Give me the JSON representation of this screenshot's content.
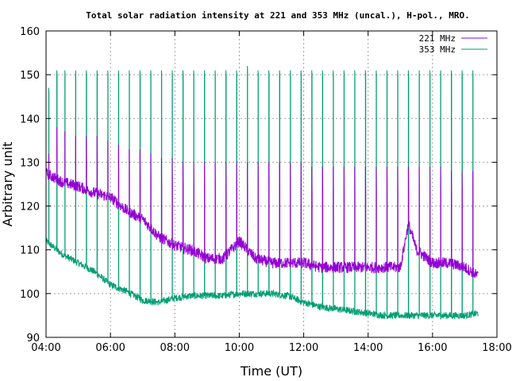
{
  "chart_data": {
    "type": "line",
    "title": "Total solar radiation intensity at 221 and 353 MHz (uncal.), H-pol., MRO.",
    "xlabel": "Time (UT)",
    "ylabel": "Arbitrary unit",
    "xlim": [
      "04:00",
      "18:00"
    ],
    "ylim": [
      90,
      160
    ],
    "x_ticks": [
      "04:00",
      "06:00",
      "08:00",
      "10:00",
      "12:00",
      "14:00",
      "16:00",
      "18:00"
    ],
    "y_ticks": [
      90,
      100,
      110,
      120,
      130,
      140,
      150,
      160
    ],
    "grid": true,
    "legend_position": "top-right",
    "series": [
      {
        "name": "221 MHz",
        "color": "#9400d3",
        "baseline": {
          "x": [
            "04:00",
            "04:30",
            "05:00",
            "05:30",
            "06:00",
            "06:30",
            "07:00",
            "07:30",
            "08:00",
            "08:30",
            "09:00",
            "09:30",
            "10:00",
            "10:30",
            "11:00",
            "11:30",
            "12:00",
            "12:30",
            "13:00",
            "13:30",
            "14:00",
            "14:30",
            "15:00",
            "15:15",
            "15:30",
            "16:00",
            "16:30",
            "17:00",
            "17:25"
          ],
          "y": [
            127.5,
            125.5,
            124.5,
            123,
            122,
            119,
            117,
            113,
            111,
            110,
            108,
            108,
            112,
            108,
            107,
            107,
            107,
            106,
            106,
            106,
            106,
            106,
            106,
            116,
            110,
            107,
            107,
            106,
            104
          ]
        },
        "spikes": {
          "x": [
            "04:05",
            "04:20",
            "04:35",
            "04:55",
            "05:15",
            "05:35",
            "05:55",
            "06:15",
            "06:35",
            "06:55",
            "07:15",
            "07:35",
            "07:55",
            "08:15",
            "08:35",
            "08:55",
            "09:15",
            "09:35",
            "09:55",
            "10:15",
            "10:35",
            "10:55",
            "11:15",
            "11:35",
            "11:55",
            "12:15",
            "12:35",
            "12:55",
            "13:15",
            "13:35",
            "13:55",
            "14:15",
            "14:35",
            "14:55",
            "15:15",
            "15:35",
            "15:55",
            "16:15",
            "16:35",
            "16:55",
            "17:15"
          ],
          "y": [
            132,
            138,
            137,
            136,
            136,
            136,
            135,
            134,
            133,
            133,
            132,
            131,
            131,
            130,
            130,
            130,
            130,
            130,
            130,
            130,
            130,
            130,
            130,
            130,
            130,
            129,
            129,
            129,
            129,
            129,
            129,
            129,
            129,
            129,
            129,
            129,
            129,
            129,
            128,
            128,
            128
          ]
        }
      },
      {
        "name": "353 MHz",
        "color": "#009e73",
        "baseline": {
          "x": [
            "04:00",
            "04:30",
            "05:00",
            "05:30",
            "06:00",
            "06:30",
            "07:00",
            "07:30",
            "08:00",
            "08:30",
            "09:00",
            "09:30",
            "10:00",
            "10:30",
            "11:00",
            "11:30",
            "12:00",
            "12:30",
            "13:00",
            "13:30",
            "14:00",
            "14:30",
            "15:00",
            "15:30",
            "16:00",
            "16:30",
            "17:00",
            "17:25"
          ],
          "y": [
            112,
            109,
            107,
            105,
            102,
            100.5,
            98.5,
            98,
            99,
            99.5,
            99.5,
            99.5,
            100,
            100,
            100,
            99.5,
            98,
            97,
            96.5,
            96,
            95.5,
            95,
            95,
            95,
            95,
            95,
            95,
            95.5
          ]
        },
        "spikes": {
          "x": [
            "04:05",
            "04:20",
            "04:35",
            "04:55",
            "05:15",
            "05:35",
            "05:55",
            "06:15",
            "06:35",
            "06:55",
            "07:15",
            "07:35",
            "07:55",
            "08:15",
            "08:35",
            "08:55",
            "09:15",
            "09:35",
            "09:55",
            "10:15",
            "10:35",
            "10:55",
            "11:15",
            "11:35",
            "11:55",
            "12:15",
            "12:35",
            "12:55",
            "13:15",
            "13:35",
            "13:55",
            "14:15",
            "14:35",
            "14:55",
            "15:15",
            "15:35",
            "15:55",
            "16:15",
            "16:35",
            "16:55",
            "17:15"
          ],
          "y": [
            147,
            151,
            151,
            151,
            151,
            151,
            151,
            151,
            151,
            151,
            151,
            151,
            151,
            151,
            151,
            151,
            151,
            151,
            151,
            152,
            151,
            151,
            151,
            151,
            151,
            151,
            151,
            151,
            151,
            151,
            151,
            151,
            151,
            151,
            151,
            151,
            151,
            151,
            151,
            151,
            151
          ]
        }
      }
    ]
  }
}
